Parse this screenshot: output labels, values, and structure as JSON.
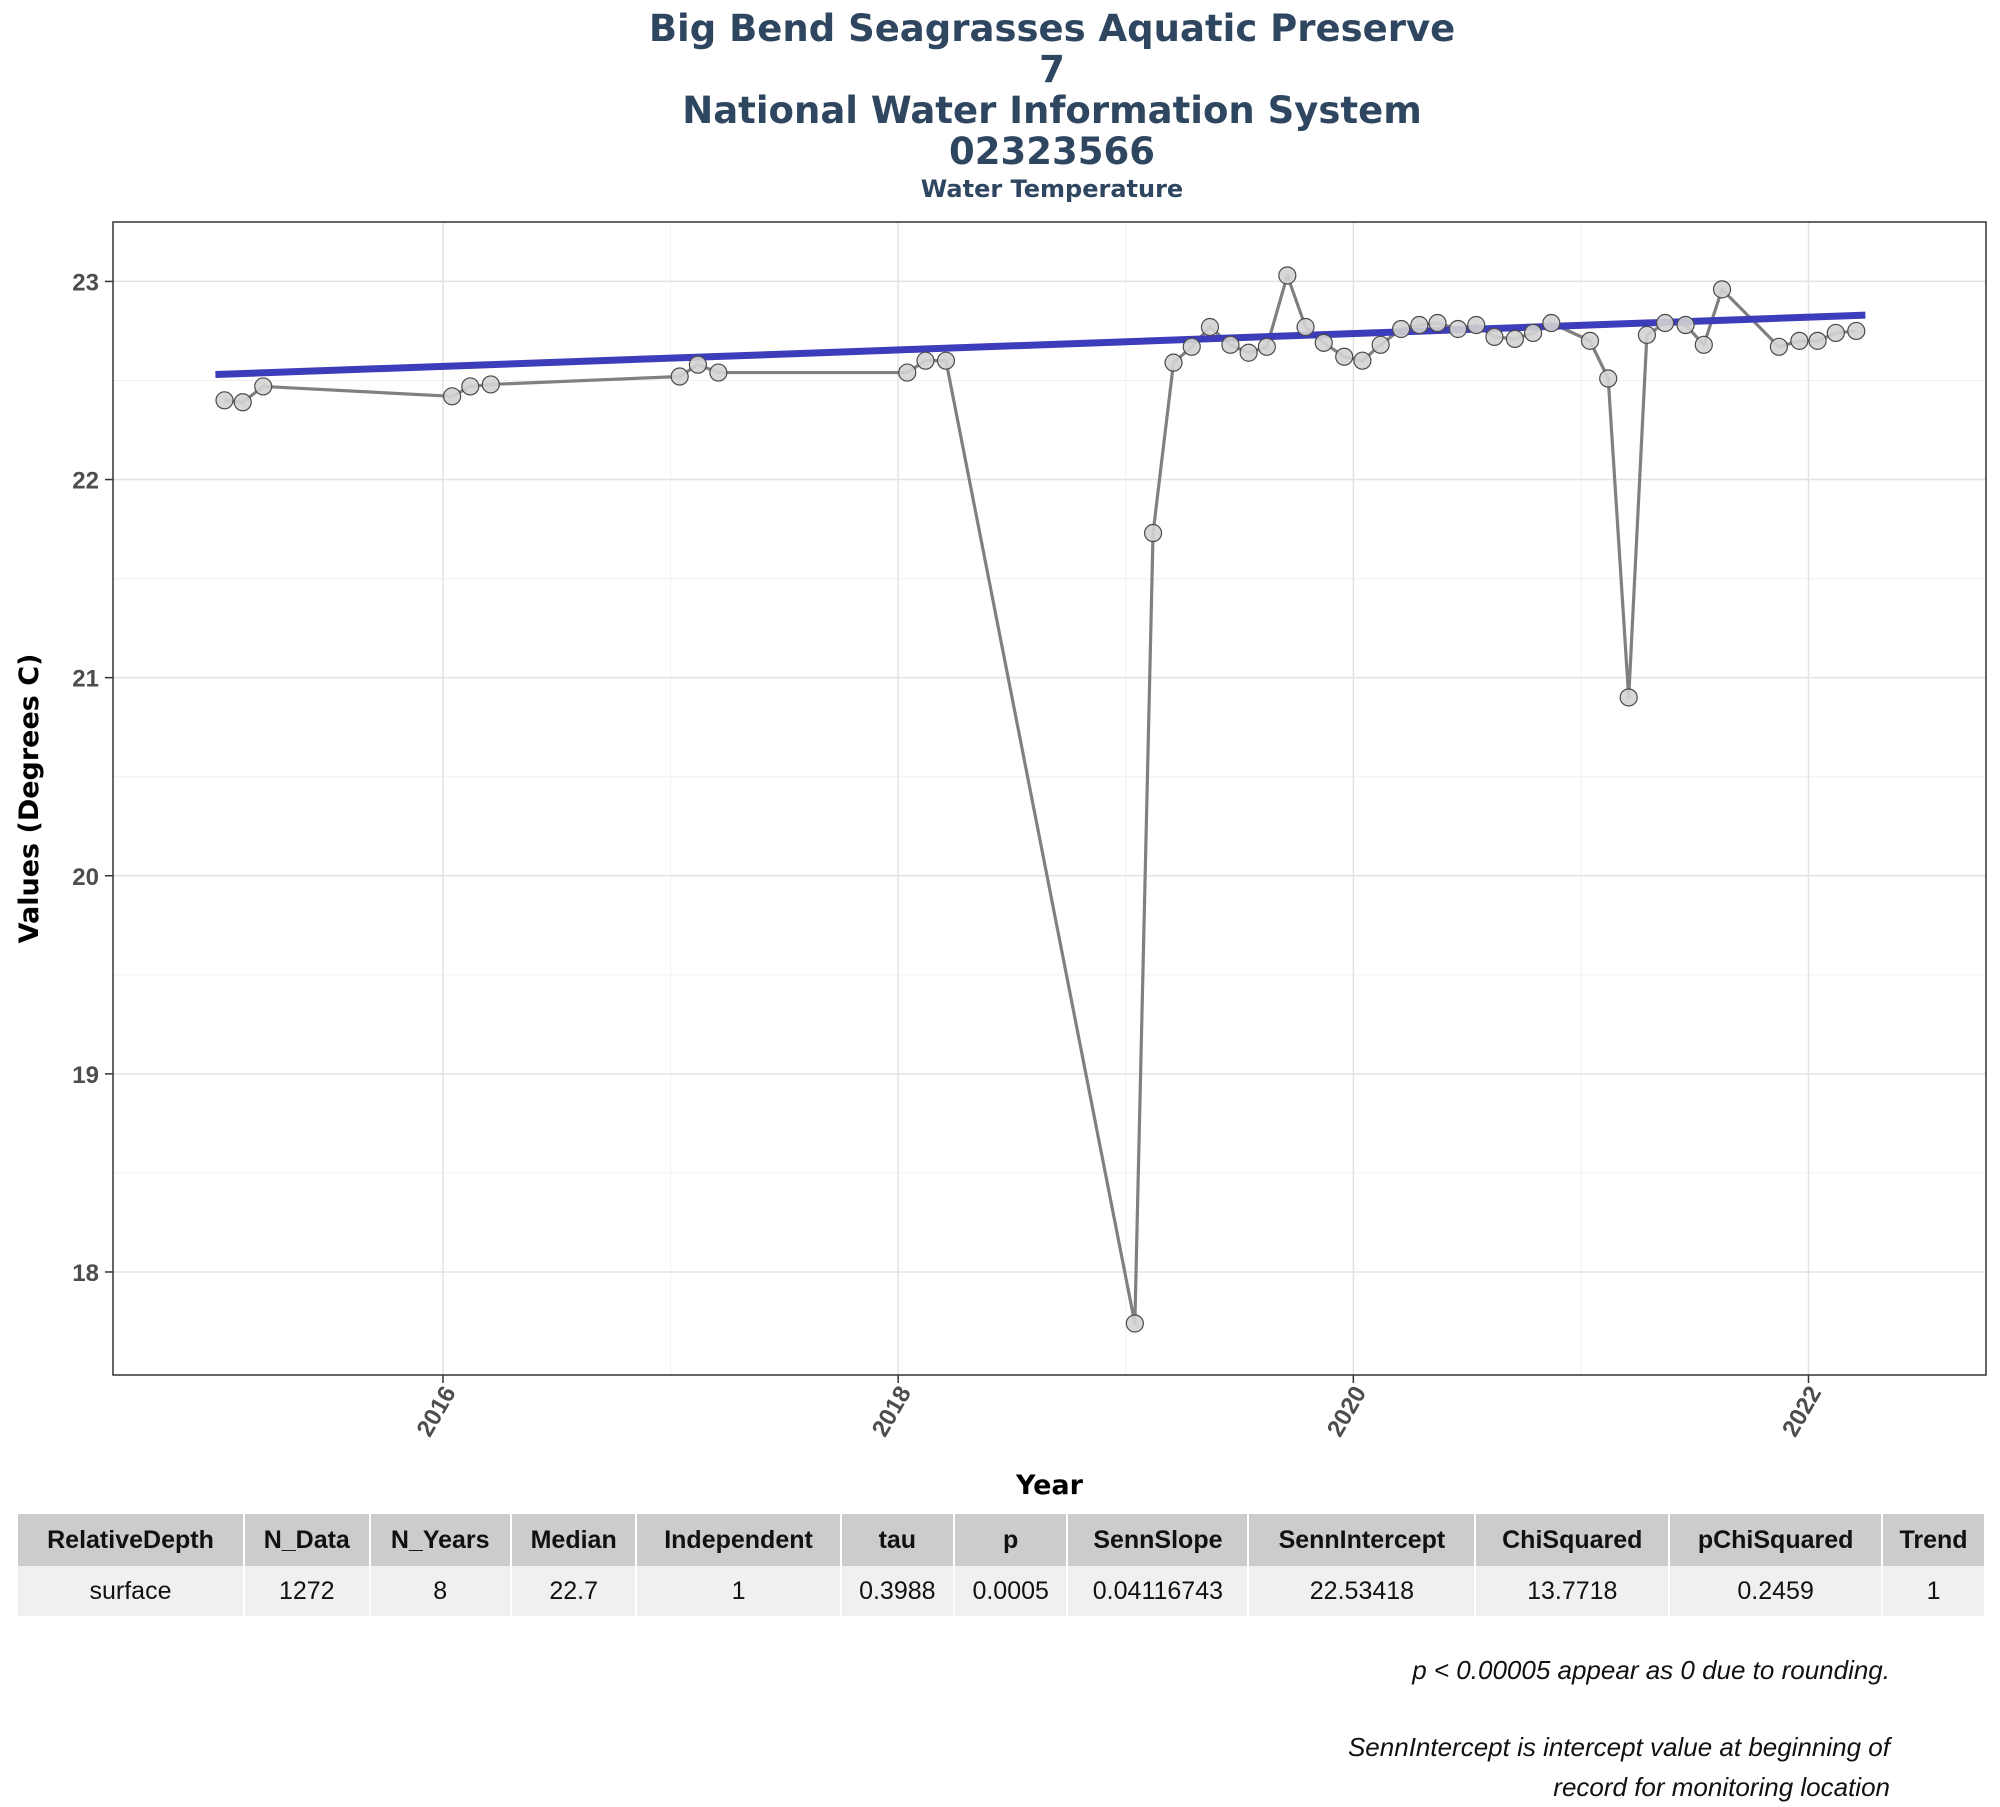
{
  "titles": {
    "line1": "Big Bend Seagrasses Aquatic Preserve",
    "line2": "7",
    "line3": "National Water Information System",
    "line4": "02323566",
    "subtitle": "Water Temperature"
  },
  "chart_data": {
    "type": "line",
    "title": "Big Bend Seagrasses Aquatic Preserve 7 National Water Information System 02323566",
    "subtitle": "Water Temperature",
    "xlabel": "Year",
    "ylabel": "Values (Degrees C)",
    "xlim": [
      2014.55,
      2022.78
    ],
    "ylim": [
      17.48,
      23.3
    ],
    "x_ticks": [
      "2016",
      "2018",
      "2020",
      "2022"
    ],
    "y_ticks": [
      "18",
      "19",
      "20",
      "21",
      "22",
      "23"
    ],
    "grid": true,
    "series": [
      {
        "role": "monthly values",
        "color": "#808080",
        "point_fill": "#d3d3d3",
        "x": [
          2015.04,
          2015.12,
          2015.21,
          2016.04,
          2016.12,
          2016.21,
          2017.04,
          2017.12,
          2017.21,
          2018.04,
          2018.12,
          2018.21,
          2019.04,
          2019.12,
          2019.21,
          2019.29,
          2019.37,
          2019.46,
          2019.54,
          2019.62,
          2019.71,
          2019.79,
          2019.87,
          2019.96,
          2020.04,
          2020.12,
          2020.21,
          2020.29,
          2020.37,
          2020.46,
          2020.54,
          2020.62,
          2020.71,
          2020.79,
          2020.87,
          2021.04,
          2021.12,
          2021.21,
          2021.29,
          2021.37,
          2021.46,
          2021.54,
          2021.62,
          2021.87,
          2021.96,
          2022.04,
          2022.12,
          2022.21
        ],
        "y": [
          22.4,
          22.39,
          22.47,
          22.42,
          22.47,
          22.48,
          22.52,
          22.58,
          22.54,
          22.54,
          22.6,
          22.6,
          17.74,
          21.73,
          22.59,
          22.67,
          22.77,
          22.68,
          22.64,
          22.67,
          23.03,
          22.77,
          22.69,
          22.62,
          22.6,
          22.68,
          22.76,
          22.78,
          22.79,
          22.76,
          22.78,
          22.72,
          22.71,
          22.74,
          22.79,
          22.7,
          22.51,
          20.9,
          22.73,
          22.79,
          22.78,
          22.68,
          22.96,
          22.67,
          22.7,
          22.7,
          22.74,
          22.75
        ]
      },
      {
        "role": "Sen slope trend",
        "color": "#3d3dbb",
        "x": [
          2015.0,
          2022.25
        ],
        "y": [
          22.53,
          22.83
        ]
      }
    ]
  },
  "table": {
    "headers": [
      "RelativeDepth",
      "N_Data",
      "N_Years",
      "Median",
      "Independent",
      "tau",
      "p",
      "SennSlope",
      "SennIntercept",
      "ChiSquared",
      "pChiSquared",
      "Trend"
    ],
    "rows": [
      [
        "surface",
        "1272",
        "8",
        "22.7",
        "1",
        "0.3988",
        "0.0005",
        "0.04116743",
        "22.53418",
        "13.7718",
        "0.2459",
        "1"
      ]
    ]
  },
  "notes": {
    "rounding": "p < 0.00005 appear as 0 due to rounding.",
    "intercept_line1": "SennIntercept is intercept value at beginning of",
    "intercept_line2": "record for monitoring location"
  }
}
